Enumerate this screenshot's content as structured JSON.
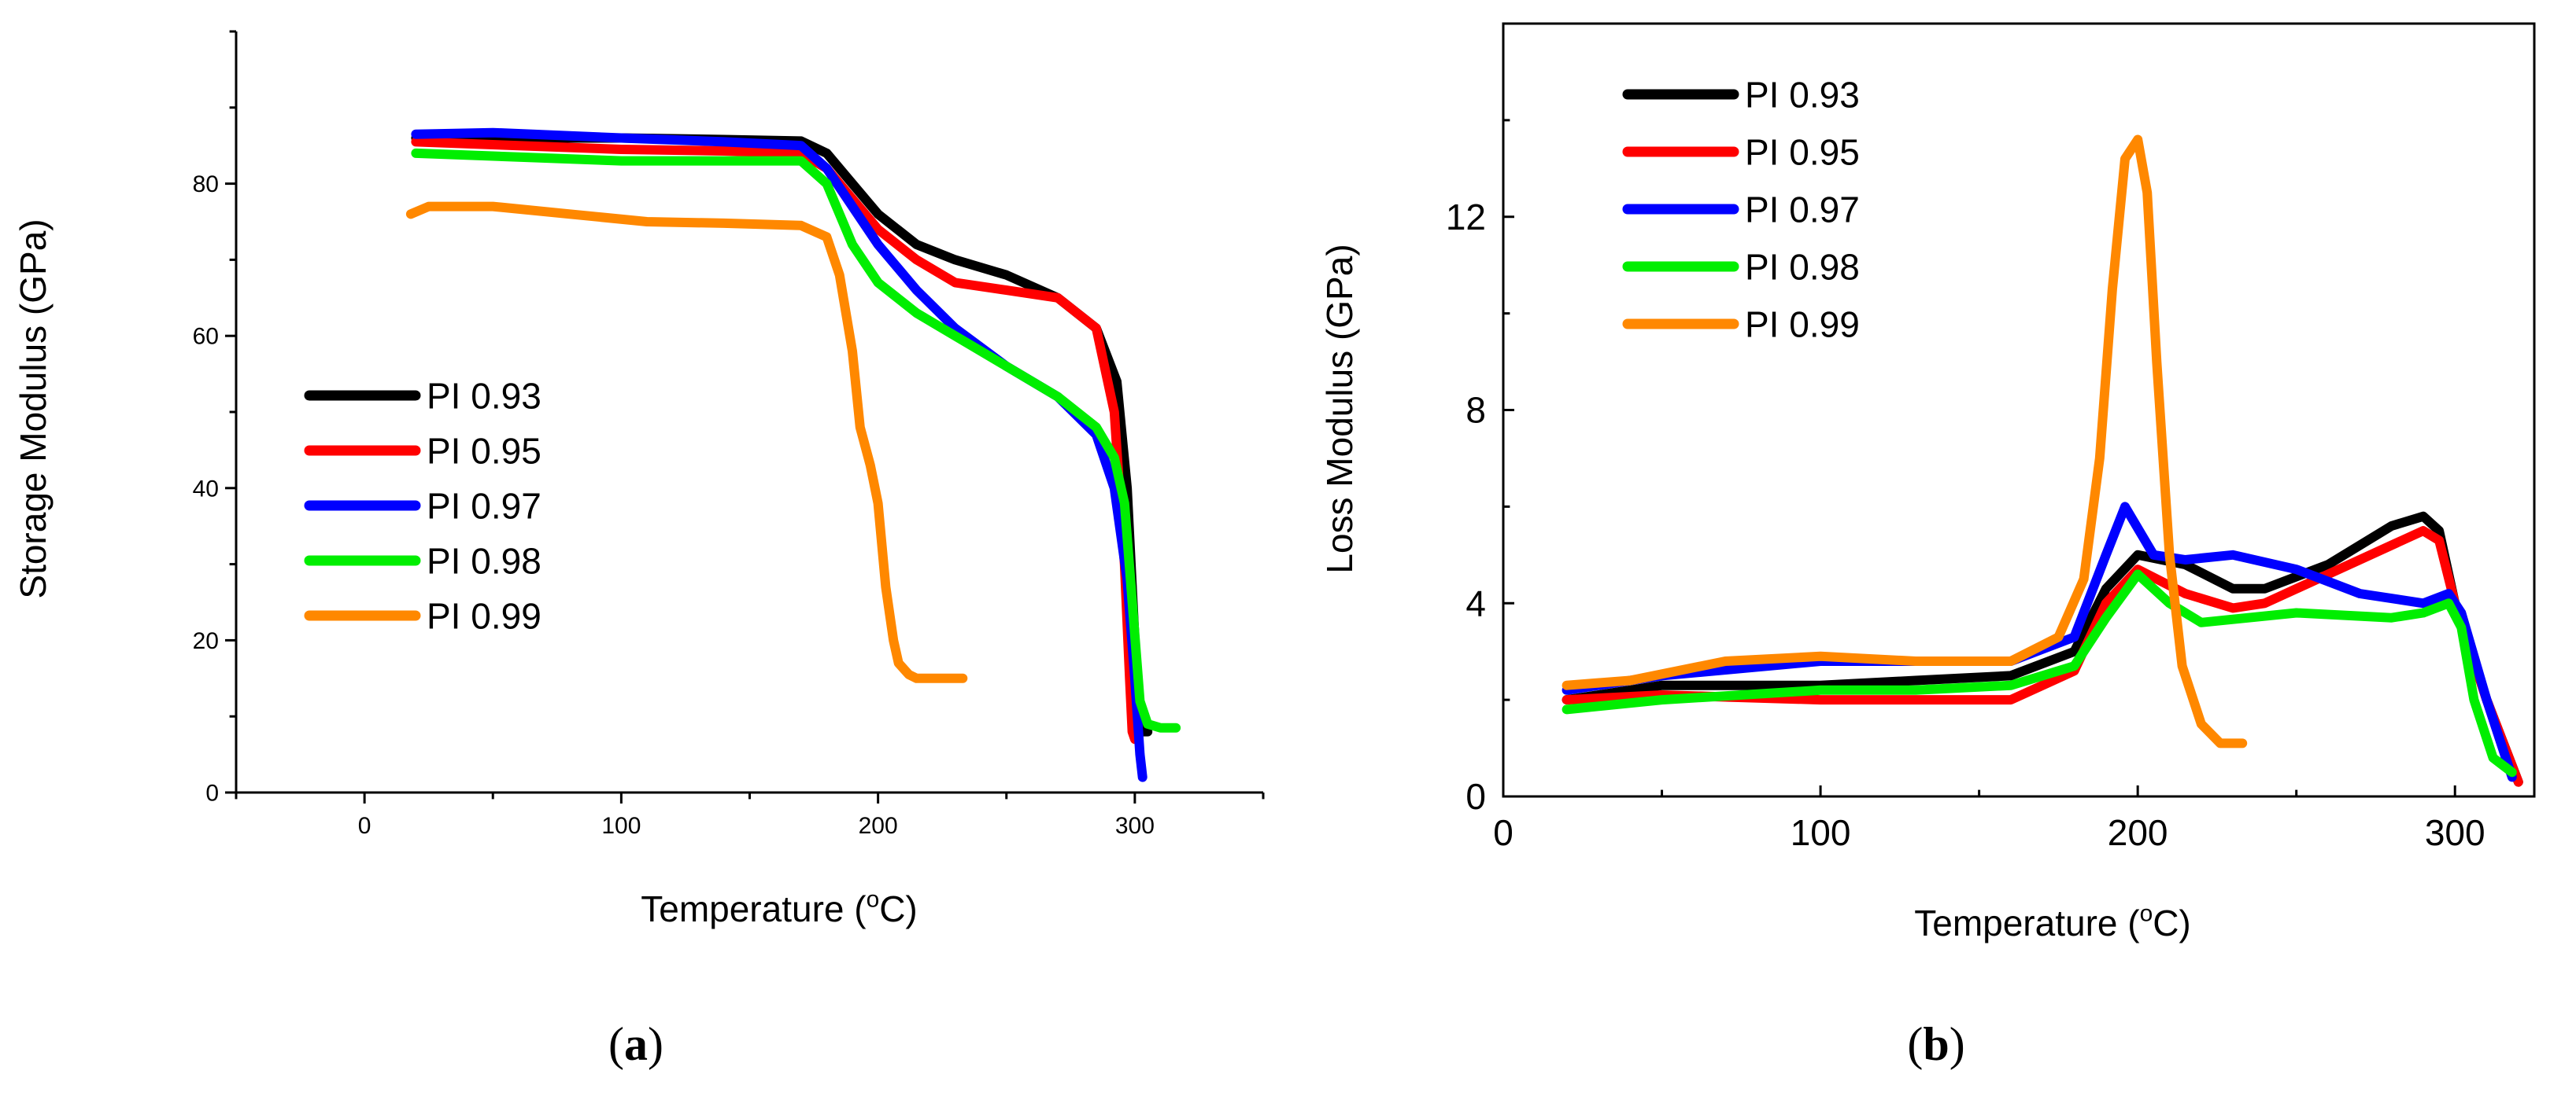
{
  "chart_data": [
    {
      "type": "line",
      "panel_label": "(a)",
      "panel_letter": "a",
      "xlabel": "Temperature (°C)",
      "ylabel": "Storage Modulus (GPa)",
      "xlim": [
        -50,
        350
      ],
      "ylim": [
        0,
        100
      ],
      "xticks": [
        0,
        100,
        200,
        300
      ],
      "yticks": [
        0,
        20,
        40,
        60,
        80
      ],
      "legend_position": "left-middle",
      "series": [
        {
          "name": "PI 0.93",
          "color": "#000000",
          "x": [
            20,
            60,
            100,
            140,
            170,
            180,
            190,
            200,
            215,
            230,
            250,
            270,
            285,
            293,
            297,
            300,
            302,
            303,
            305
          ],
          "y": [
            86,
            86,
            86,
            85.8,
            85.6,
            84,
            80,
            76,
            72,
            70,
            68,
            65,
            61,
            54,
            40,
            20,
            10,
            8,
            8
          ]
        },
        {
          "name": "PI 0.95",
          "color": "#ff0000",
          "x": [
            20,
            60,
            100,
            140,
            170,
            180,
            190,
            200,
            215,
            230,
            250,
            270,
            285,
            292,
            296,
            298,
            299,
            300,
            301
          ],
          "y": [
            85.5,
            85,
            84.5,
            84.3,
            84,
            82,
            78,
            74,
            70,
            67,
            66,
            65,
            61,
            50,
            30,
            15,
            8,
            7,
            8
          ]
        },
        {
          "name": "PI 0.97",
          "color": "#0000ff",
          "x": [
            20,
            50,
            100,
            140,
            170,
            180,
            190,
            200,
            215,
            230,
            250,
            270,
            285,
            292,
            297,
            300,
            302,
            303
          ],
          "y": [
            86.5,
            86.7,
            86,
            85.5,
            85,
            82,
            77,
            72,
            66,
            61,
            56,
            52,
            47,
            40,
            28,
            15,
            5,
            2
          ]
        },
        {
          "name": "PI 0.98",
          "color": "#00ee00",
          "x": [
            20,
            60,
            100,
            140,
            170,
            180,
            190,
            200,
            215,
            230,
            250,
            270,
            285,
            292,
            296,
            299,
            302,
            305,
            310,
            316
          ],
          "y": [
            84,
            83.5,
            83,
            83,
            83,
            80,
            72,
            67,
            63,
            60,
            56,
            52,
            48,
            44,
            38,
            25,
            12,
            9,
            8.5,
            8.5
          ]
        },
        {
          "name": "PI 0.99",
          "color": "#ff8800",
          "x": [
            18,
            25,
            50,
            80,
            110,
            140,
            170,
            180,
            185,
            190,
            193,
            197,
            200,
            203,
            206,
            208,
            212,
            215,
            220,
            233
          ],
          "y": [
            76,
            77,
            77,
            76,
            75,
            74.8,
            74.5,
            73,
            68,
            58,
            48,
            43,
            38,
            27,
            20,
            17,
            15.5,
            15,
            15,
            15
          ]
        }
      ]
    },
    {
      "type": "line",
      "panel_label": "(b)",
      "panel_letter": "b",
      "xlabel": "Temperature (°C)",
      "ylabel": "Loss Modulus (GPa)",
      "xlim": [
        0,
        325
      ],
      "ylim": [
        0,
        16
      ],
      "xticks": [
        0,
        100,
        200,
        300
      ],
      "yticks": [
        0,
        4,
        8,
        12
      ],
      "legend_position": "top-left",
      "series": [
        {
          "name": "PI 0.93",
          "color": "#000000",
          "x": [
            20,
            50,
            100,
            130,
            160,
            180,
            190,
            200,
            215,
            230,
            240,
            260,
            280,
            290,
            295,
            300,
            310,
            320
          ],
          "y": [
            2.0,
            2.3,
            2.3,
            2.4,
            2.5,
            3.0,
            4.3,
            5.0,
            4.8,
            4.3,
            4.3,
            4.8,
            5.6,
            5.8,
            5.5,
            4.0,
            2.0,
            0.3
          ]
        },
        {
          "name": "PI 0.95",
          "color": "#ff0000",
          "x": [
            20,
            50,
            100,
            130,
            160,
            180,
            190,
            200,
            215,
            230,
            240,
            260,
            280,
            290,
            295,
            300,
            310,
            320
          ],
          "y": [
            2.0,
            2.1,
            2.0,
            2.0,
            2.0,
            2.6,
            4.0,
            4.7,
            4.2,
            3.9,
            4.0,
            4.6,
            5.2,
            5.5,
            5.3,
            4.0,
            2.0,
            0.3
          ]
        },
        {
          "name": "PI 0.97",
          "color": "#0000ff",
          "x": [
            20,
            50,
            100,
            130,
            160,
            180,
            190,
            196,
            205,
            215,
            230,
            250,
            270,
            290,
            298,
            302,
            310,
            318
          ],
          "y": [
            2.2,
            2.5,
            2.8,
            2.8,
            2.8,
            3.3,
            5.0,
            6.0,
            5.0,
            4.9,
            5.0,
            4.7,
            4.2,
            4.0,
            4.2,
            3.8,
            2.0,
            0.4
          ]
        },
        {
          "name": "PI 0.98",
          "color": "#00ee00",
          "x": [
            20,
            50,
            100,
            130,
            160,
            180,
            190,
            200,
            210,
            220,
            250,
            280,
            290,
            298,
            302,
            306,
            312,
            318
          ],
          "y": [
            1.8,
            2.0,
            2.2,
            2.2,
            2.3,
            2.7,
            3.7,
            4.6,
            4.0,
            3.6,
            3.8,
            3.7,
            3.8,
            4.0,
            3.5,
            2.0,
            0.8,
            0.5
          ]
        },
        {
          "name": "PI 0.99",
          "color": "#ff8800",
          "x": [
            20,
            40,
            70,
            100,
            130,
            160,
            175,
            183,
            188,
            192,
            196,
            200,
            203,
            206,
            210,
            214,
            220,
            226,
            233
          ],
          "y": [
            2.3,
            2.4,
            2.8,
            2.9,
            2.8,
            2.8,
            3.3,
            4.5,
            7.0,
            10.5,
            13.2,
            13.6,
            12.5,
            9.0,
            5.0,
            2.7,
            1.5,
            1.1,
            1.1
          ]
        }
      ]
    }
  ]
}
